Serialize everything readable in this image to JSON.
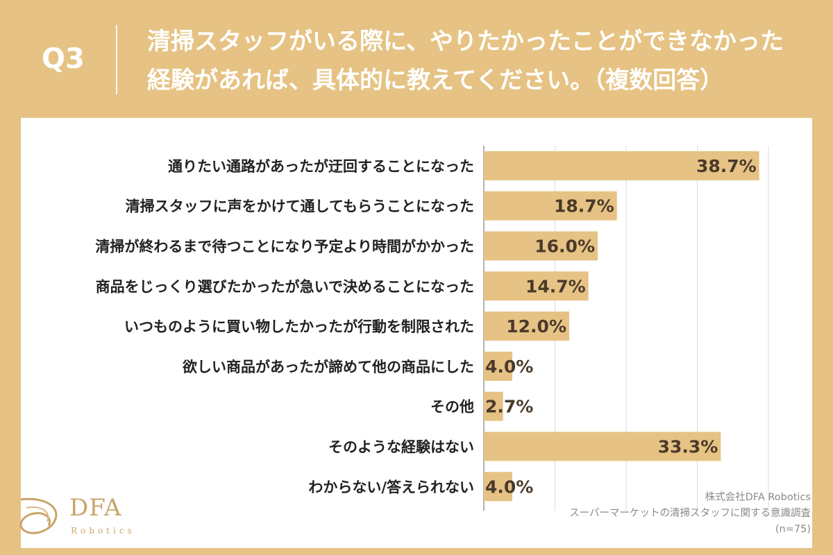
{
  "header": {
    "q_label": "Q3",
    "question": "清掃スタッフがいる際に、やりたかったことができなかった\n経験があれば、具体的に教えてください。（複数回答）"
  },
  "colors": {
    "background": "#e6c384",
    "bar": "#e6c384",
    "panel": "#ffffff"
  },
  "chart_data": {
    "type": "bar",
    "orientation": "horizontal",
    "categories": [
      "通りたい通路があったが迂回することになった",
      "清掃スタッフに声をかけて通してもらうことになった",
      "清掃が終わるまで待つことになり予定より時間がかかった",
      "商品をじっくり選びたかったが急いで決めることになった",
      "いつものように買い物したかったが行動を制限された",
      "欲しい商品があったが諦めて他の商品にした",
      "その他",
      "そのような経験はない",
      "わからない/答えられない"
    ],
    "values": [
      38.7,
      18.7,
      16.0,
      14.7,
      12.0,
      4.0,
      2.7,
      33.3,
      4.0
    ],
    "value_labels": [
      "38.7%",
      "18.7%",
      "16.0%",
      "14.7%",
      "12.0%",
      "4.0%",
      "2.7%",
      "33.3%",
      "4.0%"
    ],
    "xlim": [
      0,
      40
    ],
    "grid": true
  },
  "source": {
    "company": "株式会社DFA Robotics",
    "survey": "スーパーマーケットの清掃スタッフに関する意識調査",
    "n": "(n=75)"
  },
  "logo": {
    "name": "DFA",
    "sub": "Robotics"
  }
}
